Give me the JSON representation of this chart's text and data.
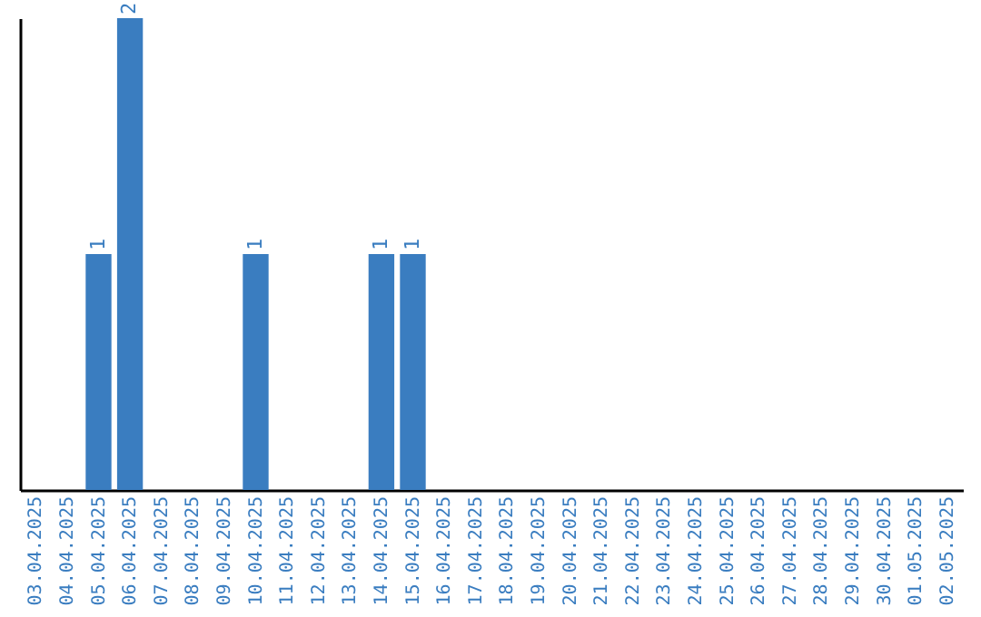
{
  "chart_data": {
    "type": "bar",
    "categories": [
      "03.04.2025",
      "04.04.2025",
      "05.04.2025",
      "06.04.2025",
      "07.04.2025",
      "08.04.2025",
      "09.04.2025",
      "10.04.2025",
      "11.04.2025",
      "12.04.2025",
      "13.04.2025",
      "14.04.2025",
      "15.04.2025",
      "16.04.2025",
      "17.04.2025",
      "18.04.2025",
      "19.04.2025",
      "20.04.2025",
      "21.04.2025",
      "22.04.2025",
      "23.04.2025",
      "24.04.2025",
      "25.04.2025",
      "26.04.2025",
      "27.04.2025",
      "28.04.2025",
      "29.04.2025",
      "30.04.2025",
      "01.05.2025",
      "02.05.2025"
    ],
    "values": [
      0,
      0,
      1,
      2,
      0,
      0,
      0,
      1,
      0,
      0,
      0,
      1,
      1,
      0,
      0,
      0,
      0,
      0,
      0,
      0,
      0,
      0,
      0,
      0,
      0,
      0,
      0,
      0,
      0,
      0
    ],
    "value_labels": [
      null,
      null,
      "1",
      "2",
      null,
      null,
      null,
      "1",
      null,
      null,
      null,
      "1",
      "1",
      null,
      null,
      null,
      null,
      null,
      null,
      null,
      null,
      null,
      null,
      null,
      null,
      null,
      null,
      null,
      null,
      null
    ],
    "color": "#3a7dc0",
    "grid": false
  }
}
